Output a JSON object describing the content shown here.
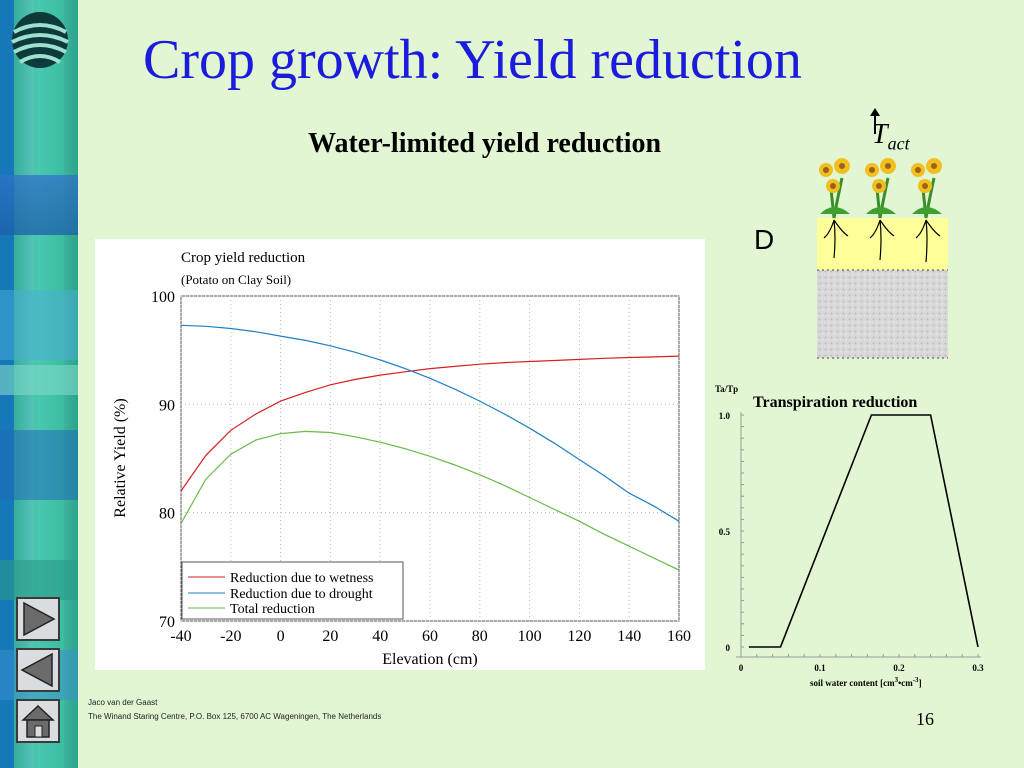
{
  "slide": {
    "title": "Crop growth: Yield reduction",
    "subtitle": "Water-limited yield reduction",
    "footer_author": "Jaco van der Gaast",
    "footer_address": "The Winand Staring Centre, P.O. Box 125, 6700 AC Wageningen, The Netherlands",
    "page_number": "16"
  },
  "illustration": {
    "tact_main": "T",
    "tact_sub": "act",
    "depth_label": "D"
  },
  "nav": {
    "buttons": [
      "next-slide-button",
      "previous-slide-button",
      "home-button"
    ]
  },
  "chart_data": [
    {
      "type": "line",
      "title": "Crop yield reduction",
      "subtitle": "(Potato on Clay Soil)",
      "xlabel": "Elevation (cm)",
      "ylabel": "Relative Yield (%)",
      "xlim": [
        -40,
        160
      ],
      "ylim": [
        70,
        100
      ],
      "xticks": [
        "-40",
        "-20",
        "0",
        "20",
        "40",
        "60",
        "80",
        "100",
        "120",
        "140",
        "160"
      ],
      "yticks": [
        "70",
        "80",
        "90",
        "100"
      ],
      "grid": true,
      "legend": "bottom-left",
      "series": [
        {
          "name": "Reduction due to wetness",
          "color": "#d42020",
          "x": [
            -40,
            -30,
            -20,
            -10,
            0,
            10,
            20,
            30,
            40,
            50,
            60,
            70,
            80,
            90,
            100,
            110,
            120,
            130,
            140,
            150,
            160
          ],
          "y": [
            82.0,
            85.3,
            87.6,
            89.1,
            90.3,
            91.1,
            91.8,
            92.3,
            92.7,
            93.0,
            93.3,
            93.5,
            93.7,
            93.85,
            93.95,
            94.05,
            94.15,
            94.25,
            94.32,
            94.38,
            94.45
          ]
        },
        {
          "name": "Reduction due to drought",
          "color": "#1f7fc4",
          "x": [
            -40,
            -30,
            -20,
            -10,
            0,
            10,
            20,
            30,
            40,
            50,
            60,
            70,
            80,
            90,
            100,
            110,
            120,
            130,
            140,
            150,
            160
          ],
          "y": [
            97.3,
            97.2,
            97.0,
            96.7,
            96.3,
            95.9,
            95.4,
            94.8,
            94.1,
            93.3,
            92.4,
            91.4,
            90.3,
            89.1,
            87.8,
            86.4,
            84.9,
            83.4,
            81.8,
            80.6,
            79.2
          ]
        },
        {
          "name": "Total reduction",
          "color": "#6aba4a",
          "x": [
            -40,
            -30,
            -20,
            -10,
            0,
            10,
            20,
            30,
            40,
            50,
            60,
            70,
            80,
            90,
            100,
            110,
            120,
            130,
            140,
            150,
            160
          ],
          "y": [
            79.0,
            83.1,
            85.4,
            86.7,
            87.3,
            87.5,
            87.4,
            87.0,
            86.5,
            85.9,
            85.2,
            84.4,
            83.5,
            82.5,
            81.4,
            80.3,
            79.2,
            78.0,
            76.9,
            75.8,
            74.7
          ]
        }
      ]
    },
    {
      "type": "line",
      "title": "Transpiration reduction",
      "ylabel": "Ta/Tp",
      "xlabel_main": "soil water content [cm",
      "xlabel_sup1": "3",
      "xlabel_mid": "•cm",
      "xlabel_sup2": "-3",
      "xlabel_end": "]",
      "xlim": [
        0,
        0.3
      ],
      "ylim": [
        0,
        1.0
      ],
      "xticks": [
        "0",
        "0.1",
        "0.2",
        "0.3"
      ],
      "yticks": [
        "0",
        "0.5",
        "1.0"
      ],
      "grid": false,
      "series": [
        {
          "color": "#000000",
          "x": [
            0.01,
            0.05,
            0.165,
            0.24,
            0.3
          ],
          "y": [
            0,
            0,
            1.0,
            1.0,
            0
          ]
        }
      ]
    }
  ]
}
